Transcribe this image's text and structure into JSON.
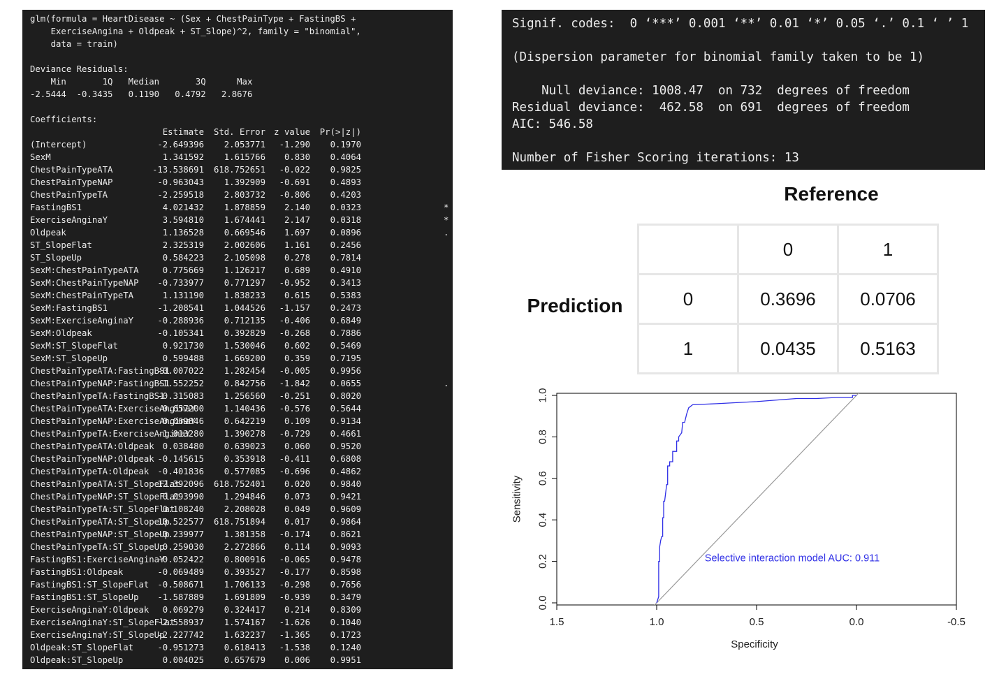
{
  "terminal_left": {
    "lines_top": [
      "glm(formula = HeartDisease ~ (Sex + ChestPainType + FastingBS +",
      "    ExerciseAngina + Oldpeak + ST_Slope)^2, family = \"binomial\",",
      "    data = train)",
      "",
      "Deviance Residuals:",
      "    Min       1Q   Median       3Q      Max",
      "-2.5444  -0.3435   0.1190   0.4792   2.8676",
      "",
      "Coefficients:"
    ],
    "header": {
      "estimate": "Estimate",
      "std_error": "Std. Error",
      "z_value": "z value",
      "p_value": "Pr(>|z|)"
    },
    "coefficients": [
      {
        "name": "(Intercept)",
        "estimate": "-2.649396",
        "se": "2.053771",
        "z": "-1.290",
        "p": "0.1970",
        "sig": ""
      },
      {
        "name": "SexM",
        "estimate": "1.341592",
        "se": "1.615766",
        "z": "0.830",
        "p": "0.4064",
        "sig": ""
      },
      {
        "name": "ChestPainTypeATA",
        "estimate": "-13.538691",
        "se": "618.752651",
        "z": "-0.022",
        "p": "0.9825",
        "sig": ""
      },
      {
        "name": "ChestPainTypeNAP",
        "estimate": "-0.963043",
        "se": "1.392909",
        "z": "-0.691",
        "p": "0.4893",
        "sig": ""
      },
      {
        "name": "ChestPainTypeTA",
        "estimate": "-2.259518",
        "se": "2.803732",
        "z": "-0.806",
        "p": "0.4203",
        "sig": ""
      },
      {
        "name": "FastingBS1",
        "estimate": "4.021432",
        "se": "1.878859",
        "z": "2.140",
        "p": "0.0323",
        "sig": "*"
      },
      {
        "name": "ExerciseAnginaY",
        "estimate": "3.594810",
        "se": "1.674441",
        "z": "2.147",
        "p": "0.0318",
        "sig": "*"
      },
      {
        "name": "Oldpeak",
        "estimate": "1.136528",
        "se": "0.669546",
        "z": "1.697",
        "p": "0.0896",
        "sig": "."
      },
      {
        "name": "ST_SlopeFlat",
        "estimate": "2.325319",
        "se": "2.002606",
        "z": "1.161",
        "p": "0.2456",
        "sig": ""
      },
      {
        "name": "ST_SlopeUp",
        "estimate": "0.584223",
        "se": "2.105098",
        "z": "0.278",
        "p": "0.7814",
        "sig": ""
      },
      {
        "name": "SexM:ChestPainTypeATA",
        "estimate": "0.775669",
        "se": "1.126217",
        "z": "0.689",
        "p": "0.4910",
        "sig": ""
      },
      {
        "name": "SexM:ChestPainTypeNAP",
        "estimate": "-0.733977",
        "se": "0.771297",
        "z": "-0.952",
        "p": "0.3413",
        "sig": ""
      },
      {
        "name": "SexM:ChestPainTypeTA",
        "estimate": "1.131190",
        "se": "1.838233",
        "z": "0.615",
        "p": "0.5383",
        "sig": ""
      },
      {
        "name": "SexM:FastingBS1",
        "estimate": "-1.208541",
        "se": "1.044526",
        "z": "-1.157",
        "p": "0.2473",
        "sig": ""
      },
      {
        "name": "SexM:ExerciseAnginaY",
        "estimate": "-0.288936",
        "se": "0.712135",
        "z": "-0.406",
        "p": "0.6849",
        "sig": ""
      },
      {
        "name": "SexM:Oldpeak",
        "estimate": "-0.105341",
        "se": "0.392829",
        "z": "-0.268",
        "p": "0.7886",
        "sig": ""
      },
      {
        "name": "SexM:ST_SlopeFlat",
        "estimate": "0.921730",
        "se": "1.530046",
        "z": "0.602",
        "p": "0.5469",
        "sig": ""
      },
      {
        "name": "SexM:ST_SlopeUp",
        "estimate": "0.599488",
        "se": "1.669200",
        "z": "0.359",
        "p": "0.7195",
        "sig": ""
      },
      {
        "name": "ChestPainTypeATA:FastingBS1",
        "estimate": "-0.007022",
        "se": "1.282454",
        "z": "-0.005",
        "p": "0.9956",
        "sig": ""
      },
      {
        "name": "ChestPainTypeNAP:FastingBS1",
        "estimate": "-1.552252",
        "se": "0.842756",
        "z": "-1.842",
        "p": "0.0655",
        "sig": "."
      },
      {
        "name": "ChestPainTypeTA:FastingBS1",
        "estimate": "-0.315083",
        "se": "1.256560",
        "z": "-0.251",
        "p": "0.8020",
        "sig": ""
      },
      {
        "name": "ChestPainTypeATA:ExerciseAnginaY",
        "estimate": "-0.657200",
        "se": "1.140436",
        "z": "-0.576",
        "p": "0.5644",
        "sig": ""
      },
      {
        "name": "ChestPainTypeNAP:ExerciseAnginaY",
        "estimate": "0.069846",
        "se": "0.642219",
        "z": "0.109",
        "p": "0.9134",
        "sig": ""
      },
      {
        "name": "ChestPainTypeTA:ExerciseAnginaY",
        "estimate": "-1.013280",
        "se": "1.390278",
        "z": "-0.729",
        "p": "0.4661",
        "sig": ""
      },
      {
        "name": "ChestPainTypeATA:Oldpeak",
        "estimate": "0.038480",
        "se": "0.639023",
        "z": "0.060",
        "p": "0.9520",
        "sig": ""
      },
      {
        "name": "ChestPainTypeNAP:Oldpeak",
        "estimate": "-0.145615",
        "se": "0.353918",
        "z": "-0.411",
        "p": "0.6808",
        "sig": ""
      },
      {
        "name": "ChestPainTypeTA:Oldpeak",
        "estimate": "-0.401836",
        "se": "0.577085",
        "z": "-0.696",
        "p": "0.4862",
        "sig": ""
      },
      {
        "name": "ChestPainTypeATA:ST_SlopeFlat",
        "estimate": "12.392096",
        "se": "618.752401",
        "z": "0.020",
        "p": "0.9840",
        "sig": ""
      },
      {
        "name": "ChestPainTypeNAP:ST_SlopeFlat",
        "estimate": "0.093990",
        "se": "1.294846",
        "z": "0.073",
        "p": "0.9421",
        "sig": ""
      },
      {
        "name": "ChestPainTypeTA:ST_SlopeFlat",
        "estimate": "0.108240",
        "se": "2.208028",
        "z": "0.049",
        "p": "0.9609",
        "sig": ""
      },
      {
        "name": "ChestPainTypeATA:ST_SlopeUp",
        "estimate": "10.522577",
        "se": "618.751894",
        "z": "0.017",
        "p": "0.9864",
        "sig": ""
      },
      {
        "name": "ChestPainTypeNAP:ST_SlopeUp",
        "estimate": "-0.239977",
        "se": "1.381358",
        "z": "-0.174",
        "p": "0.8621",
        "sig": ""
      },
      {
        "name": "ChestPainTypeTA:ST_SlopeUp",
        "estimate": "0.259030",
        "se": "2.272866",
        "z": "0.114",
        "p": "0.9093",
        "sig": ""
      },
      {
        "name": "FastingBS1:ExerciseAnginaY",
        "estimate": "-0.052422",
        "se": "0.800916",
        "z": "-0.065",
        "p": "0.9478",
        "sig": ""
      },
      {
        "name": "FastingBS1:Oldpeak",
        "estimate": "-0.069489",
        "se": "0.393527",
        "z": "-0.177",
        "p": "0.8598",
        "sig": ""
      },
      {
        "name": "FastingBS1:ST_SlopeFlat",
        "estimate": "-0.508671",
        "se": "1.706133",
        "z": "-0.298",
        "p": "0.7656",
        "sig": ""
      },
      {
        "name": "FastingBS1:ST_SlopeUp",
        "estimate": "-1.587889",
        "se": "1.691809",
        "z": "-0.939",
        "p": "0.3479",
        "sig": ""
      },
      {
        "name": "ExerciseAnginaY:Oldpeak",
        "estimate": "0.069279",
        "se": "0.324417",
        "z": "0.214",
        "p": "0.8309",
        "sig": ""
      },
      {
        "name": "ExerciseAnginaY:ST_SlopeFlat",
        "estimate": "-2.558937",
        "se": "1.574167",
        "z": "-1.626",
        "p": "0.1040",
        "sig": ""
      },
      {
        "name": "ExerciseAnginaY:ST_SlopeUp",
        "estimate": "-2.227742",
        "se": "1.632237",
        "z": "-1.365",
        "p": "0.1723",
        "sig": ""
      },
      {
        "name": "Oldpeak:ST_SlopeFlat",
        "estimate": "-0.951273",
        "se": "0.618413",
        "z": "-1.538",
        "p": "0.1240",
        "sig": ""
      },
      {
        "name": "Oldpeak:ST_SlopeUp",
        "estimate": "0.004025",
        "se": "0.657679",
        "z": "0.006",
        "p": "0.9951",
        "sig": ""
      }
    ]
  },
  "terminal_right": {
    "lines": [
      "Signif. codes:  0 ‘***’ 0.001 ‘**’ 0.01 ‘*’ 0.05 ‘.’ 0.1 ‘ ’ 1",
      "",
      "(Dispersion parameter for binomial family taken to be 1)",
      "",
      "    Null deviance: 1008.47  on 732  degrees of freedom",
      "Residual deviance:  462.58  on 691  degrees of freedom",
      "AIC: 546.58",
      "",
      "Number of Fisher Scoring iterations: 13"
    ]
  },
  "confusion_matrix": {
    "title": "Reference",
    "row_label": "Prediction",
    "col_headers": [
      "",
      "0",
      "1"
    ],
    "rows": [
      {
        "label": "0",
        "values": [
          "0.3696",
          "0.0706"
        ]
      },
      {
        "label": "1",
        "values": [
          "0.0435",
          "0.5163"
        ]
      }
    ]
  },
  "chart_data": {
    "type": "line",
    "xlabel": "Specificity",
    "ylabel": "Sensitivity",
    "xlim": [
      1.5,
      -0.5
    ],
    "ylim": [
      0.0,
      1.0
    ],
    "x_ticks": [
      "1.5",
      "1.0",
      "0.5",
      "0.0",
      "-0.5"
    ],
    "y_ticks": [
      "0.0",
      "0.2",
      "0.4",
      "0.6",
      "0.8",
      "1.0"
    ],
    "annotation": "Selective interaction model AUC: 0.911",
    "colors": {
      "roc": "#2f2fe6",
      "diagonal": "#9a9a9a",
      "annotation": "#2f2fe6"
    },
    "series": [
      {
        "x": [
          1.0,
          0.99,
          0.99,
          0.985,
          0.985,
          0.98,
          0.975,
          0.97,
          0.97,
          0.965,
          0.965,
          0.96,
          0.95,
          0.945,
          0.945,
          0.935,
          0.935,
          0.92,
          0.92,
          0.9,
          0.9,
          0.89,
          0.89,
          0.875,
          0.87,
          0.86,
          0.85,
          0.84,
          0.82,
          0.7,
          0.6,
          0.5,
          0.3,
          0.2,
          0.1,
          0.02,
          0.02,
          0.0
        ],
        "y": [
          0.0,
          0.03,
          0.2,
          0.2,
          0.27,
          0.3,
          0.32,
          0.32,
          0.41,
          0.41,
          0.49,
          0.49,
          0.57,
          0.57,
          0.66,
          0.66,
          0.68,
          0.68,
          0.73,
          0.73,
          0.78,
          0.78,
          0.8,
          0.82,
          0.87,
          0.87,
          0.91,
          0.94,
          0.955,
          0.96,
          0.965,
          0.97,
          0.985,
          0.985,
          0.99,
          0.99,
          1.0,
          1.0
        ]
      },
      {
        "x": [
          1.04,
          -0.04
        ],
        "y": [
          -0.04,
          1.04
        ]
      }
    ]
  }
}
